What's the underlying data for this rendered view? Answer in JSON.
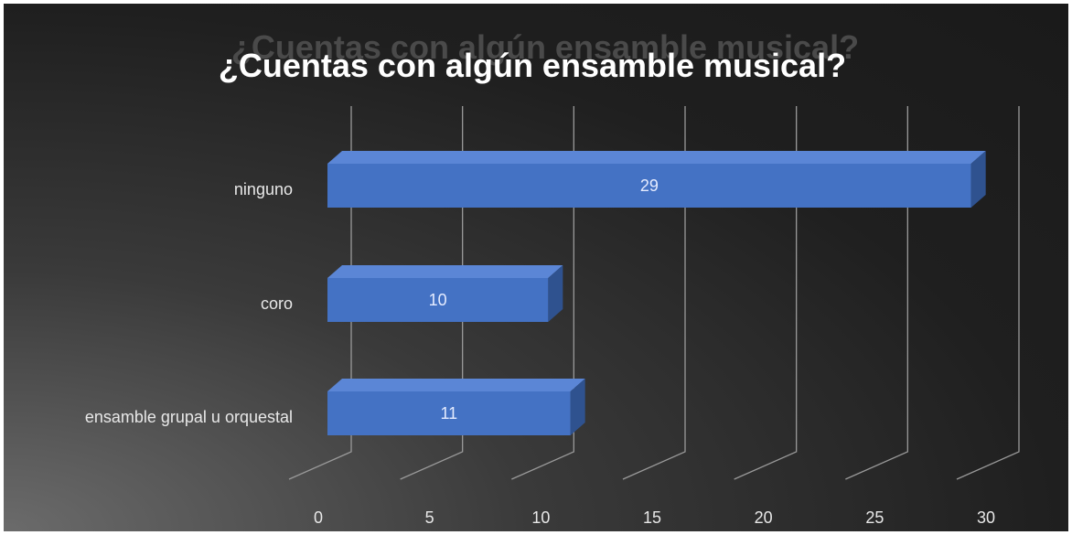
{
  "chart_data": {
    "type": "bar",
    "orientation": "horizontal",
    "title": "¿Cuentas con algún ensamble musical?",
    "categories": [
      "ninguno",
      "coro",
      "ensamble grupal u orquestal"
    ],
    "values": [
      29,
      10,
      11
    ],
    "data_labels": [
      "29",
      "10",
      "11"
    ],
    "xlim": [
      0,
      30
    ],
    "xticks": [
      "0",
      "5",
      "10",
      "15",
      "20",
      "25",
      "30"
    ],
    "grid": true,
    "legend": "none",
    "style": "3d"
  },
  "colors": {
    "background": "#1f1f1f",
    "bar_front": "#4472c4",
    "bar_top": "#5b86d6",
    "bar_side": "#2f528f",
    "text": "#ffffff"
  }
}
